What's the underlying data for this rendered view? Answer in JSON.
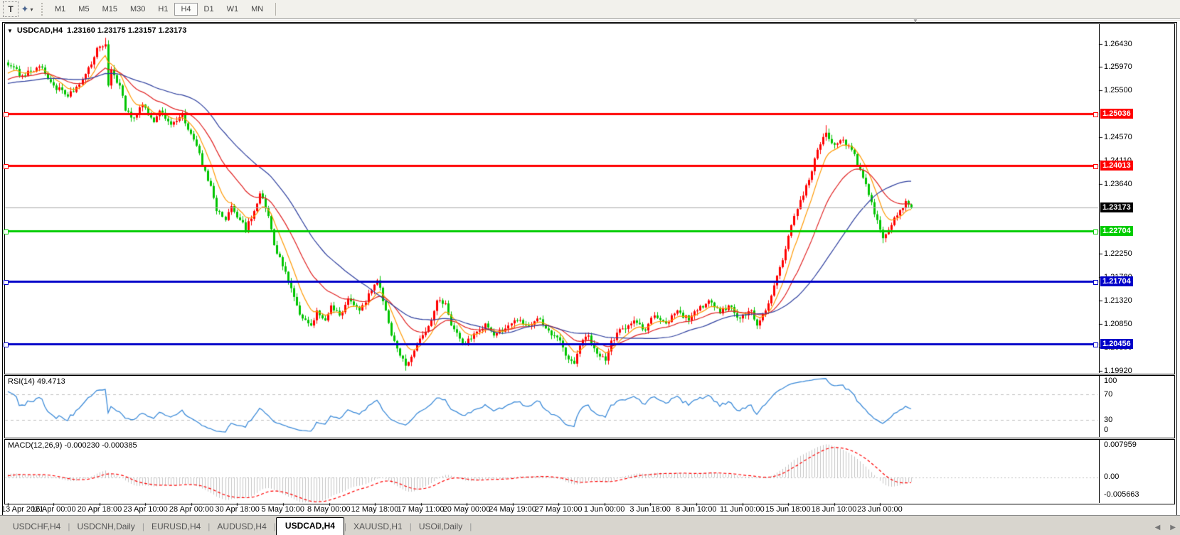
{
  "toolbar": {
    "text_tool": "T",
    "timeframes": [
      "M1",
      "M5",
      "M15",
      "M30",
      "H1",
      "H4",
      "D1",
      "W1",
      "MN"
    ],
    "active_timeframe": "H4"
  },
  "title": {
    "symbol": "USDCAD,H4",
    "ohlc": "1.23160 1.23175 1.23157 1.23173"
  },
  "price_axis": {
    "ticks": [
      "1.26430",
      "1.25970",
      "1.25500",
      "1.24570",
      "1.24110",
      "1.23640",
      "1.22250",
      "1.21780",
      "1.21320",
      "1.20850",
      "1.20390",
      "1.19920"
    ],
    "current_price": "1.23173"
  },
  "horizontal_lines": [
    {
      "price": 1.25036,
      "label": "1.25036",
      "color": "#ff0000"
    },
    {
      "price": 1.24013,
      "label": "1.24013",
      "color": "#ff0000"
    },
    {
      "price": 1.22704,
      "label": "1.22704",
      "color": "#00cc00"
    },
    {
      "price": 1.21704,
      "label": "1.21704",
      "color": "#0000c8"
    },
    {
      "price": 1.20456,
      "label": "1.20456",
      "color": "#0000c8"
    }
  ],
  "time_axis": [
    "13 Apr 2021",
    "16 Apr 00:00",
    "20 Apr 18:00",
    "23 Apr 10:00",
    "28 Apr 00:00",
    "30 Apr 18:00",
    "5 May 10:00",
    "8 May 00:00",
    "12 May 18:00",
    "17 May 11:00",
    "20 May 00:00",
    "24 May 19:00",
    "27 May 10:00",
    "1 Jun 00:00",
    "3 Jun 18:00",
    "8 Jun 10:00",
    "11 Jun 00:00",
    "15 Jun 18:00",
    "18 Jun 10:00",
    "23 Jun 00:00"
  ],
  "rsi": {
    "label": "RSI(14) 49.4713",
    "levels": [
      "100",
      "70",
      "30",
      "0"
    ]
  },
  "macd": {
    "label": "MACD(12,26,9) -0.000230 -0.000385",
    "axis": [
      "0.007959",
      "0.00",
      "-0.005663"
    ]
  },
  "tabs": [
    "USDCHF,H4",
    "USDCNH,Daily",
    "EURUSD,H4",
    "AUDUSD,H4",
    "USDCAD,H4",
    "XAUUSD,H1",
    "USOil,Daily"
  ],
  "active_tab": "USDCAD,H4",
  "colors": {
    "candle_up": "#ff0000",
    "candle_down": "#00c400",
    "ma_fast": "#ff9900",
    "ma_mid": "#e02020",
    "ma_slow": "#2e3f9e",
    "rsi_line": "#3b8ad8",
    "macd_histogram": "#c4c4c4",
    "macd_signal": "#ff0000",
    "level_dash": "#c0c0c0",
    "current_price_line": "#aaaaaa",
    "current_price_chip": "#000000"
  },
  "chart_data": {
    "type": "candlestick",
    "symbol": "USDCAD",
    "timeframe": "H4",
    "bar_count": 317,
    "color_convention": "red = bullish, green = bearish",
    "visible_price_range": [
      1.1992,
      1.2655
    ],
    "price_waypoints": [
      [
        0,
        1.26
      ],
      [
        5,
        1.258
      ],
      [
        11,
        1.2598
      ],
      [
        16,
        1.256
      ],
      [
        21,
        1.2538
      ],
      [
        25,
        1.2562
      ],
      [
        29,
        1.2602
      ],
      [
        31,
        1.2635
      ],
      [
        34,
        1.2642
      ],
      [
        35,
        1.256
      ],
      [
        36,
        1.2592
      ],
      [
        39,
        1.256
      ],
      [
        41,
        1.251
      ],
      [
        44,
        1.2496
      ],
      [
        47,
        1.2522
      ],
      [
        51,
        1.2487
      ],
      [
        53,
        1.251
      ],
      [
        57,
        1.2482
      ],
      [
        61,
        1.2505
      ],
      [
        63,
        1.2472
      ],
      [
        66,
        1.244
      ],
      [
        68,
        1.24
      ],
      [
        71,
        1.236
      ],
      [
        73,
        1.231
      ],
      [
        76,
        1.2292
      ],
      [
        78,
        1.232
      ],
      [
        81,
        1.2292
      ],
      [
        83,
        1.2272
      ],
      [
        86,
        1.231
      ],
      [
        88,
        1.2345
      ],
      [
        91,
        1.23
      ],
      [
        93,
        1.2242
      ],
      [
        96,
        1.22
      ],
      [
        98,
        1.2168
      ],
      [
        101,
        1.2122
      ],
      [
        103,
        1.2096
      ],
      [
        106,
        1.2082
      ],
      [
        108,
        1.2112
      ],
      [
        111,
        1.2092
      ],
      [
        113,
        1.2122
      ],
      [
        116,
        1.2102
      ],
      [
        119,
        1.2136
      ],
      [
        123,
        1.2112
      ],
      [
        127,
        1.2152
      ],
      [
        129,
        1.2172
      ],
      [
        132,
        1.2112
      ],
      [
        134,
        1.2062
      ],
      [
        137,
        1.2022
      ],
      [
        139,
        1.2002
      ],
      [
        142,
        1.2032
      ],
      [
        144,
        1.2056
      ],
      [
        148,
        1.2092
      ],
      [
        150,
        1.2132
      ],
      [
        153,
        1.2126
      ],
      [
        155,
        1.2082
      ],
      [
        158,
        1.2056
      ],
      [
        160,
        1.2046
      ],
      [
        163,
        1.2066
      ],
      [
        167,
        1.2086
      ],
      [
        170,
        1.2062
      ],
      [
        174,
        1.2076
      ],
      [
        178,
        1.2092
      ],
      [
        182,
        1.2082
      ],
      [
        185,
        1.2096
      ],
      [
        189,
        1.2072
      ],
      [
        193,
        1.2052
      ],
      [
        195,
        1.2022
      ],
      [
        198,
        1.2006
      ],
      [
        200,
        1.2042
      ],
      [
        203,
        1.2062
      ],
      [
        206,
        1.2026
      ],
      [
        209,
        1.2012
      ],
      [
        211,
        1.2052
      ],
      [
        215,
        1.2076
      ],
      [
        219,
        1.2092
      ],
      [
        223,
        1.2072
      ],
      [
        226,
        1.2102
      ],
      [
        230,
        1.2086
      ],
      [
        234,
        1.2112
      ],
      [
        238,
        1.2092
      ],
      [
        241,
        1.2112
      ],
      [
        245,
        1.2132
      ],
      [
        249,
        1.2106
      ],
      [
        252,
        1.2122
      ],
      [
        256,
        1.2096
      ],
      [
        260,
        1.2112
      ],
      [
        262,
        1.2082
      ],
      [
        265,
        1.2112
      ],
      [
        268,
        1.2162
      ],
      [
        271,
        1.2212
      ],
      [
        274,
        1.2282
      ],
      [
        277,
        1.2332
      ],
      [
        280,
        1.2372
      ],
      [
        283,
        1.2432
      ],
      [
        286,
        1.2466
      ],
      [
        289,
        1.2442
      ],
      [
        292,
        1.2452
      ],
      [
        295,
        1.2432
      ],
      [
        298,
        1.2392
      ],
      [
        301,
        1.2342
      ],
      [
        304,
        1.2292
      ],
      [
        306,
        1.2256
      ],
      [
        309,
        1.2282
      ],
      [
        312,
        1.2312
      ],
      [
        314,
        1.233
      ],
      [
        316,
        1.23173
      ]
    ],
    "wick_extremes": [
      [
        34,
        "high",
        1.2655
      ],
      [
        286,
        "high",
        1.2481
      ],
      [
        139,
        "low",
        1.1992
      ],
      [
        306,
        "low",
        1.2246
      ]
    ],
    "render_hints": {
      "ma_fast_period": 8,
      "ma_mid_period": 22,
      "ma_slow_period": 40,
      "rsi_period": 14,
      "macd_periods": [
        12,
        26,
        9
      ]
    }
  }
}
